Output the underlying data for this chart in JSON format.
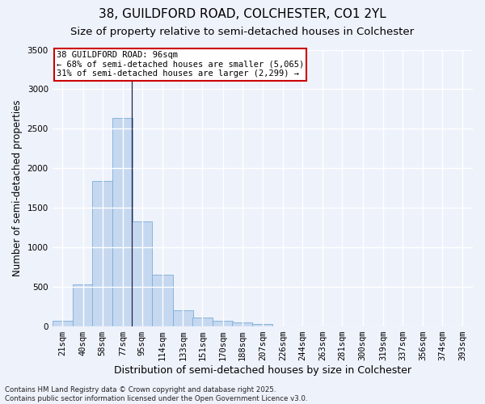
{
  "title_line1": "38, GUILDFORD ROAD, COLCHESTER, CO1 2YL",
  "title_line2": "Size of property relative to semi-detached houses in Colchester",
  "xlabel": "Distribution of semi-detached houses by size in Colchester",
  "ylabel": "Number of semi-detached properties",
  "footer_line1": "Contains HM Land Registry data © Crown copyright and database right 2025.",
  "footer_line2": "Contains public sector information licensed under the Open Government Licence v3.0.",
  "annotation_line1": "38 GUILDFORD ROAD: 96sqm",
  "annotation_line2": "← 68% of semi-detached houses are smaller (5,065)",
  "annotation_line3": "31% of semi-detached houses are larger (2,299) →",
  "bin_labels": [
    "21sqm",
    "40sqm",
    "58sqm",
    "77sqm",
    "95sqm",
    "114sqm",
    "133sqm",
    "151sqm",
    "170sqm",
    "188sqm",
    "207sqm",
    "226sqm",
    "244sqm",
    "263sqm",
    "281sqm",
    "300sqm",
    "319sqm",
    "337sqm",
    "356sqm",
    "374sqm",
    "393sqm"
  ],
  "bin_left_edges": [
    21,
    40,
    58,
    77,
    95,
    114,
    133,
    151,
    170,
    188,
    207,
    226,
    244,
    263,
    281,
    300,
    319,
    337,
    356,
    374,
    393
  ],
  "bin_width": 19,
  "bar_heights": [
    75,
    530,
    1840,
    2640,
    1330,
    650,
    210,
    110,
    75,
    50,
    30,
    5,
    2,
    1,
    0,
    0,
    0,
    0,
    0,
    0,
    0
  ],
  "bar_color": "#c5d8f0",
  "bar_edge_color": "#7aaed6",
  "vline_x": 95,
  "vline_color": "#22224a",
  "ylim": [
    0,
    3500
  ],
  "yticks": [
    0,
    500,
    1000,
    1500,
    2000,
    2500,
    3000,
    3500
  ],
  "background_color": "#eef2fb",
  "grid_color": "#ffffff",
  "annotation_box_color": "#ffffff",
  "annotation_box_edge": "#cc0000",
  "title_fontsize": 11,
  "subtitle_fontsize": 9.5,
  "axis_label_fontsize": 8.5,
  "tick_fontsize": 7.5,
  "annotation_fontsize": 7.5
}
